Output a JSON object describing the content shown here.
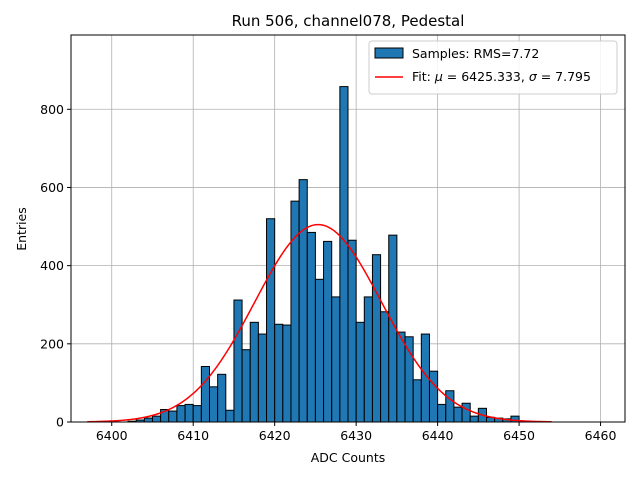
{
  "chart_data": {
    "type": "bar",
    "title": "Run 506, channel078, Pedestal",
    "xlabel": "ADC Counts",
    "ylabel": "Entries",
    "xlim": [
      6395,
      6463
    ],
    "ylim": [
      0,
      990
    ],
    "xticks": [
      6400,
      6410,
      6420,
      6430,
      6440,
      6450,
      6460
    ],
    "yticks": [
      0,
      200,
      400,
      600,
      800
    ],
    "grid": true,
    "bin_width": 1,
    "bins_left_edges": [
      6402,
      6403,
      6404,
      6405,
      6406,
      6407,
      6408,
      6409,
      6410,
      6411,
      6412,
      6413,
      6414,
      6415,
      6416,
      6417,
      6418,
      6419,
      6420,
      6421,
      6422,
      6423,
      6424,
      6425,
      6426,
      6427,
      6428,
      6429,
      6430,
      6431,
      6432,
      6433,
      6434,
      6435,
      6436,
      6437,
      6438,
      6439,
      6440,
      6441,
      6442,
      6443,
      6444,
      6445,
      6446,
      6447,
      6448,
      6449
    ],
    "counts": [
      2,
      5,
      10,
      15,
      32,
      28,
      42,
      45,
      42,
      142,
      90,
      122,
      30,
      312,
      185,
      255,
      225,
      520,
      250,
      248,
      565,
      620,
      485,
      365,
      462,
      320,
      858,
      465,
      255,
      320,
      428,
      282,
      478,
      230,
      218,
      108,
      225,
      130,
      45,
      80,
      38,
      48,
      15,
      35,
      12,
      10,
      8,
      15
    ],
    "bar_color": "#1f77b4",
    "fit_color": "#ff0000",
    "fit": {
      "mu": 6425.333,
      "sigma": 7.795,
      "amplitude": 505,
      "x_range": [
        6397,
        6454
      ]
    },
    "legend": {
      "placement": "upper-right",
      "samples_label": "Samples: RMS=7.72",
      "fit_label_prefix": "Fit: ",
      "fit_label_mu_symbol": "μ",
      "fit_label_mu_value": " = 6425.333, ",
      "fit_label_sigma_symbol": "σ",
      "fit_label_sigma_value": " = 7.795"
    }
  }
}
